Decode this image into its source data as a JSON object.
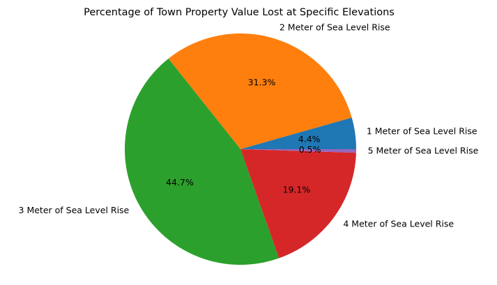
{
  "chart_data": {
    "type": "pie",
    "title": "Percentage of Town Property Value Lost at Specific Elevations",
    "slices": [
      {
        "label": "1 Meter of Sea Level Rise",
        "value": 4.4,
        "pct_label": "4.4%",
        "color": "#1f77b4"
      },
      {
        "label": "2 Meter of Sea Level Rise",
        "value": 31.3,
        "pct_label": "31.3%",
        "color": "#ff7f0e"
      },
      {
        "label": "3 Meter of Sea Level Rise",
        "value": 44.7,
        "pct_label": "44.7%",
        "color": "#2ca02c"
      },
      {
        "label": "4 Meter of Sea Level Rise",
        "value": 19.1,
        "pct_label": "19.1%",
        "color": "#d62728"
      },
      {
        "label": "5 Meter of Sea Level Rise",
        "value": 0.5,
        "pct_label": "0.5%",
        "color": "#9467bd"
      }
    ],
    "start_angle": 0,
    "direction": "counterclockwise"
  }
}
